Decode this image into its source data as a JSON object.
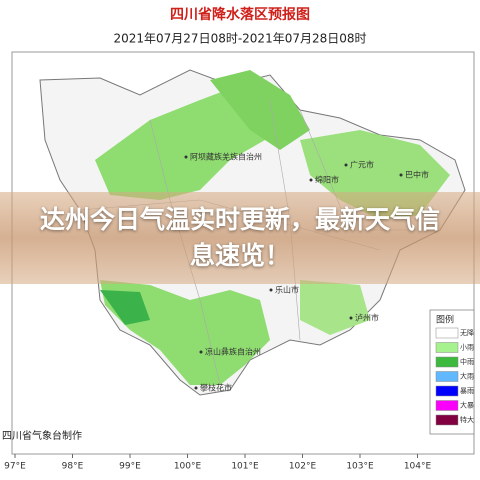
{
  "header": {
    "title": "四川省降水落区预报图",
    "subtitle": "2021年07月27日08时-2021年07月28日08时"
  },
  "overlay": {
    "headline": "达州今日气温实时更新，最新天气信息速览！"
  },
  "map": {
    "places": [
      "阿坝藏族羌族自治州",
      "广元市",
      "巴中市",
      "绵阳市",
      "乐山市",
      "泸州市",
      "凉山彝族自治州",
      "攀枝花市"
    ],
    "longitudes": [
      "97°E",
      "98°E",
      "99°E",
      "100°E",
      "101°E",
      "102°E",
      "103°E",
      "104°E"
    ],
    "credit": "四川省气象台制作"
  },
  "legend": {
    "title": "图例",
    "items": [
      "无降",
      "小雨",
      "中雨",
      "大雨",
      "暴雨",
      "大暴",
      "特大"
    ]
  }
}
